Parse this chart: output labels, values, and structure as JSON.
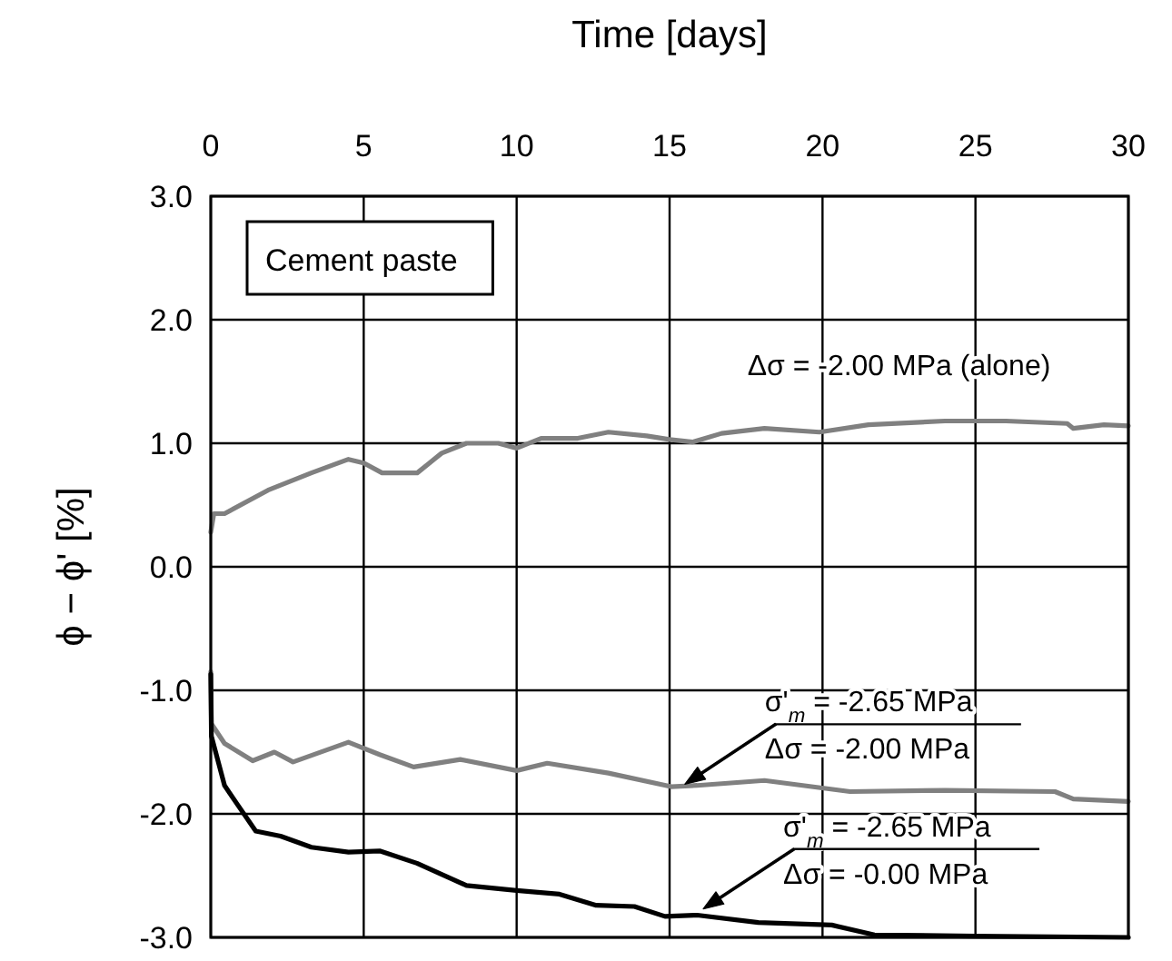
{
  "chart_data": {
    "type": "line",
    "xlabel": "Time [days]",
    "ylabel": "ϕ − ϕ' [%]",
    "xlim": [
      0,
      30
    ],
    "xticks": [
      0,
      5,
      10,
      15,
      20,
      25,
      30
    ],
    "ylim": [
      -3,
      3
    ],
    "yticks": [
      {
        "value": 3,
        "label": "3.0"
      },
      {
        "value": 2,
        "label": "2.0"
      },
      {
        "value": 1,
        "label": "1.0"
      },
      {
        "value": 0,
        "label": "0.0"
      },
      {
        "value": -1,
        "label": "-1.0"
      },
      {
        "value": -2,
        "label": "-2.0"
      },
      {
        "value": -3,
        "label": "-3.0"
      }
    ],
    "grid": true,
    "series": [
      {
        "color": "#808080",
        "x": [
          0,
          0.1,
          0.45,
          1.87,
          3.29,
          4.5,
          5.0,
          5.6,
          6.75,
          7.55,
          8.36,
          9.4,
          10.0,
          10.8,
          12.0,
          13.0,
          14.25,
          15.0,
          15.75,
          16.7,
          18.1,
          19.9,
          21.5,
          24.0,
          26.0,
          28.0,
          28.2,
          29.2,
          30
        ],
        "values": [
          0.28,
          0.43,
          0.43,
          0.62,
          0.76,
          0.87,
          0.84,
          0.76,
          0.76,
          0.92,
          1.0,
          1.0,
          0.96,
          1.04,
          1.04,
          1.09,
          1.06,
          1.03,
          1.01,
          1.08,
          1.12,
          1.09,
          1.15,
          1.18,
          1.18,
          1.16,
          1.12,
          1.15,
          1.14
        ]
      },
      {
        "color": "#808080",
        "x": [
          0,
          0.02,
          0.45,
          1.37,
          2.08,
          2.69,
          4.5,
          5.52,
          6.63,
          8.16,
          10.0,
          11.0,
          13.0,
          15.05,
          15.9,
          18.1,
          20.9,
          24.0,
          27.6,
          28.2,
          30
        ],
        "values": [
          -0.85,
          -1.27,
          -1.43,
          -1.57,
          -1.5,
          -1.58,
          -1.42,
          -1.52,
          -1.62,
          -1.56,
          -1.65,
          -1.59,
          -1.67,
          -1.78,
          -1.77,
          -1.73,
          -1.82,
          -1.81,
          -1.82,
          -1.88,
          -1.9
        ]
      },
      {
        "color": "#000000",
        "x": [
          0,
          0.02,
          0.45,
          0.86,
          1.47,
          2.28,
          3.29,
          4.5,
          5.52,
          6.74,
          8.36,
          10.0,
          11.4,
          12.6,
          13.85,
          14.85,
          15.9,
          17.9,
          20.3,
          21.7,
          25,
          30
        ],
        "values": [
          -0.87,
          -1.37,
          -1.77,
          -1.92,
          -2.14,
          -2.18,
          -2.27,
          -2.31,
          -2.3,
          -2.4,
          -2.58,
          -2.62,
          -2.65,
          -2.74,
          -2.75,
          -2.83,
          -2.82,
          -2.88,
          -2.9,
          -2.98,
          -2.99,
          -3.0
        ]
      }
    ],
    "annotations": [
      "Cement paste",
      {
        "text": "Δσ = -2.00 MPa (alone)",
        "x": 22.5,
        "y": 1.17
      },
      {
        "text": "σ'$_{m}$ = -2.65 MPa\nΔσ = -2.00 MPa",
        "x": 15.5,
        "y": -1.76
      },
      {
        "text": "σ'$_{m}$ = -2.65 MPa\nΔσ = -0.00 MPa",
        "x": 16.1,
        "y": -2.77
      }
    ]
  }
}
